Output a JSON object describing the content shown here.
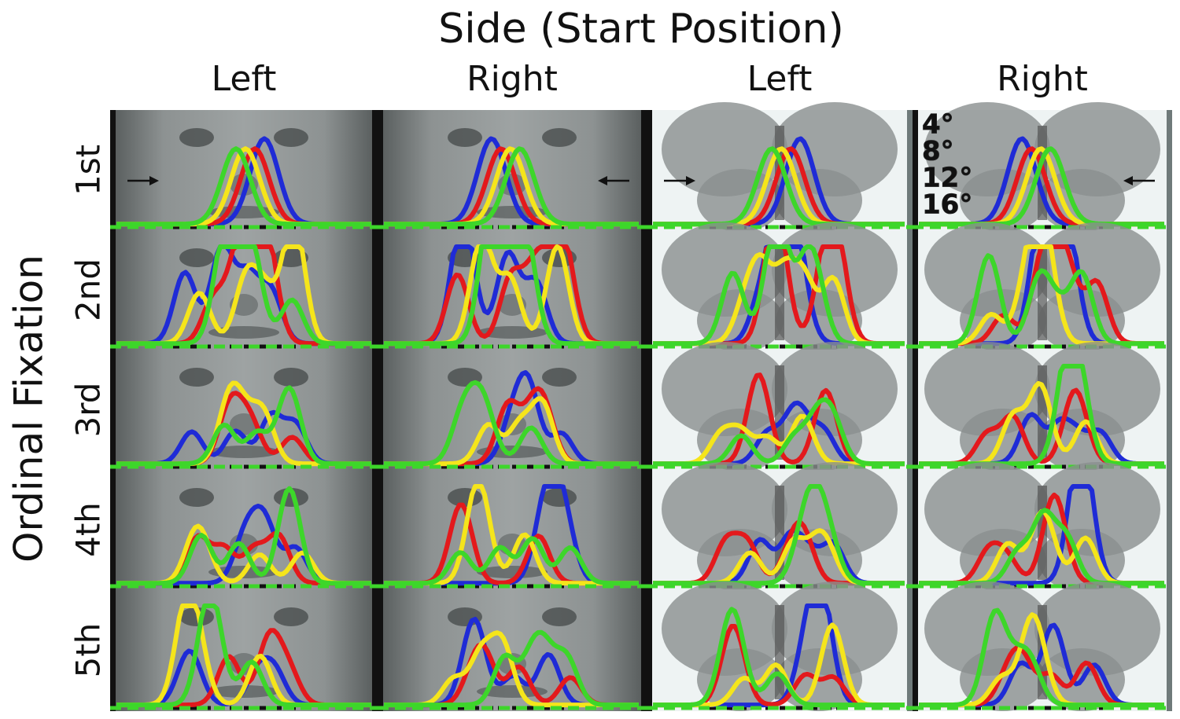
{
  "title": "Side (Start Position)",
  "columns": [
    "Left",
    "Right",
    "Left",
    "Right"
  ],
  "rows": [
    "1st",
    "2nd",
    "3rd",
    "4th",
    "5th"
  ],
  "y_label": "Ordinal Fixation",
  "legend": [
    {
      "label": "4°",
      "color": "#1f2bd6"
    },
    {
      "label": "8°",
      "color": "#e3191c"
    },
    {
      "label": "12°",
      "color": "#f5e51b"
    },
    {
      "label": "16°",
      "color": "#3dd62a"
    }
  ]
}
